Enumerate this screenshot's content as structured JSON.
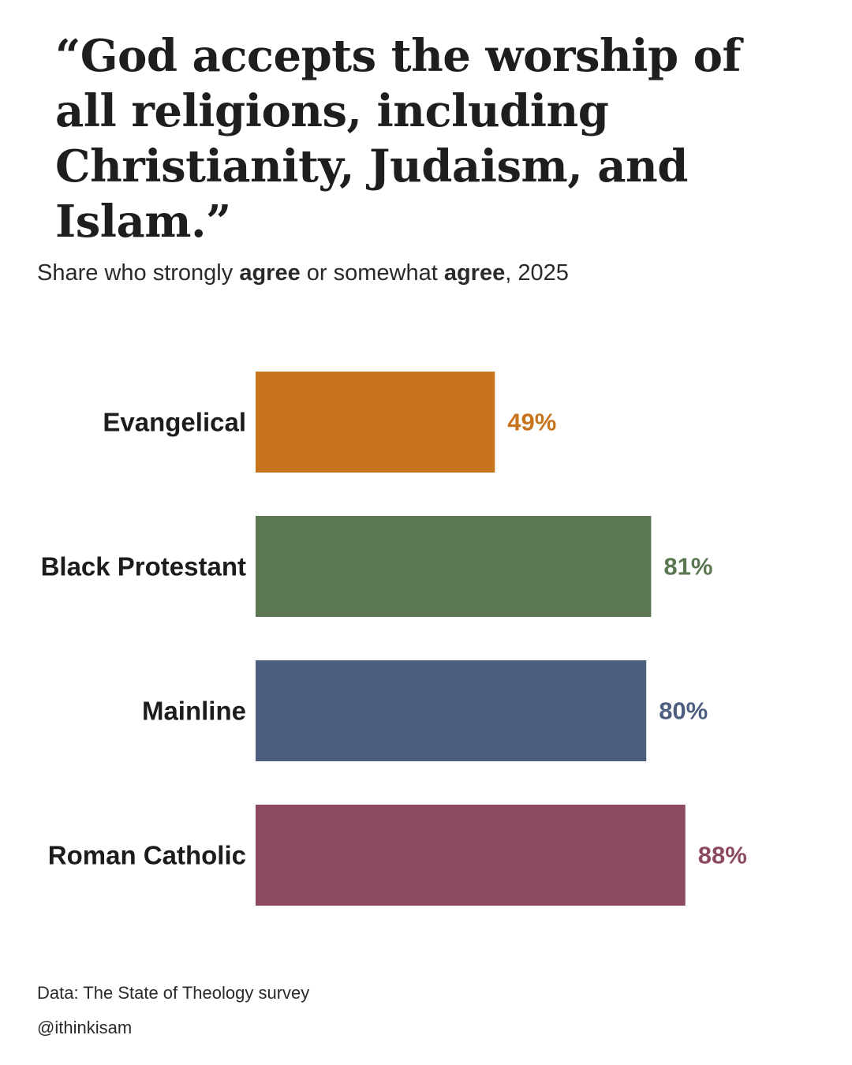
{
  "title": "“God accepts the worship of all religions, including Christianity, Judaism, and Islam.”",
  "subtitle": {
    "part1": "Share who strongly ",
    "bold1": "agree",
    "part2": " or somewhat ",
    "bold2": "agree",
    "part3": ", 2025"
  },
  "chart_data": {
    "type": "bar",
    "orientation": "horizontal",
    "categories": [
      "Evangelical",
      "Black Protestant",
      "Mainline",
      "Roman Catholic"
    ],
    "values": [
      49,
      81,
      80,
      88
    ],
    "value_labels": [
      "49%",
      "81%",
      "80%",
      "88%"
    ],
    "colors": [
      "#c8741d",
      "#5c7852",
      "#4e5e80",
      "#8c4a5e"
    ],
    "unit": "%",
    "xlim": [
      0,
      100
    ],
    "grid": false,
    "legend": "none"
  },
  "footer": {
    "source": "Data: The State of Theology survey",
    "handle": "@ithinkisam"
  }
}
